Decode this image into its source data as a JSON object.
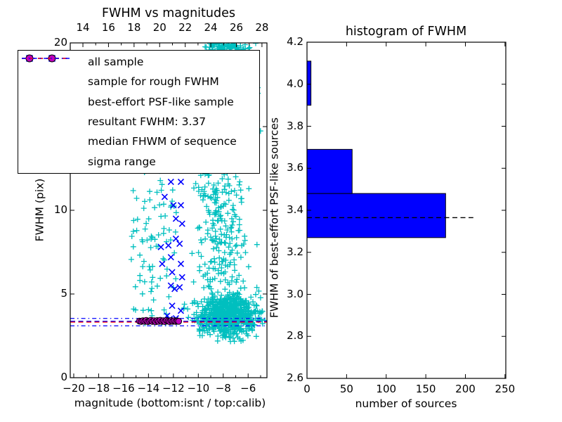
{
  "figure": {
    "background": "#ffffff"
  },
  "chart_data": [
    {
      "id": "fwhm-vs-magnitudes",
      "type": "scatter",
      "title": "FWHM vs magnitudes",
      "xlabel": "magnitude (bottom:isnt / top:calib)",
      "ylabel": "FWHM (pix)",
      "xlim": [
        -20.28,
        -4.49
      ],
      "ylim": [
        0,
        20
      ],
      "top_axis_lim": [
        13.01,
        28.39
      ],
      "xticks": {
        "values": [
          -20,
          -18,
          -16,
          -14,
          -12,
          -10,
          -8,
          -6
        ],
        "labels": [
          "−20",
          "−18",
          "−16",
          "−14",
          "−12",
          "−10",
          "−8",
          "−6"
        ],
        "minor": [
          -19,
          -17,
          -15,
          -13,
          -11,
          -9,
          -7,
          -5
        ]
      },
      "top_ticks": {
        "values": [
          14,
          16,
          18,
          20,
          22,
          24,
          26,
          28
        ],
        "labels": [
          "14",
          "16",
          "18",
          "20",
          "22",
          "24",
          "26",
          "28"
        ],
        "minor": [
          15,
          17,
          19,
          21,
          23,
          25,
          27
        ]
      },
      "yticks": {
        "values": [
          0,
          5,
          10,
          15,
          20
        ],
        "labels": [
          "0",
          "5",
          "10",
          "15",
          "20"
        ]
      },
      "grid": false,
      "series": [
        {
          "name": "all sample",
          "marker": "plus",
          "color": "#00bfbf",
          "generated_clusters": [
            {
              "n": 680,
              "mag": {
                "dist": "normal",
                "mean": -7.6,
                "sd": 1.3,
                "min": -11.2,
                "max": -4.55
              },
              "fwhm": {
                "dist": "normal",
                "mean": 3.8,
                "sd": 0.62,
                "min": 2.75,
                "max": 5.5
              }
            },
            {
              "n": 260,
              "mag": {
                "dist": "normal",
                "mean": -8.2,
                "sd": 1.0,
                "min": -11.6,
                "max": -4.8
              },
              "fwhm": {
                "dist": "uniform",
                "min": 5.3,
                "max": 14
              }
            },
            {
              "n": 215,
              "mag": {
                "dist": "normal",
                "mean": -7.9,
                "sd": 1.15,
                "min": -10.8,
                "max": -4.8
              },
              "fwhm": {
                "dist": "uniform",
                "min": 14,
                "max": 19.95
              }
            },
            {
              "n": 95,
              "mag": {
                "dist": "uniform",
                "min": -15.4,
                "max": -11.7
              },
              "fwhm": {
                "dist": "uniform",
                "min": 3.2,
                "max": 12.5
              }
            },
            {
              "n": 45,
              "mag": {
                "dist": "normal",
                "mean": -7.4,
                "sd": 1.2,
                "min": -10.0,
                "max": -5.0
              },
              "fwhm": {
                "dist": "uniform",
                "min": 2.15,
                "max": 2.85
              }
            },
            {
              "n": 55,
              "mag": {
                "dist": "normal",
                "mean": -7.8,
                "sd": 0.95,
                "min": -10.2,
                "max": -5.2
              },
              "fwhm": {
                "dist": "uniform",
                "min": 19.55,
                "max": 20.0
              }
            }
          ]
        },
        {
          "name": "sample for rough FWHM",
          "marker": "cross",
          "color": "#0000ff",
          "points": [
            [
              -12.2,
              11.7
            ],
            [
              -11.4,
              11.7
            ],
            [
              -12.7,
              10.8
            ],
            [
              -12.0,
              10.3
            ],
            [
              -11.4,
              10.3
            ],
            [
              -11.8,
              9.5
            ],
            [
              -11.3,
              9.2
            ],
            [
              -11.8,
              8.3
            ],
            [
              -11.5,
              8.0
            ],
            [
              -12.4,
              7.9
            ],
            [
              -13.0,
              7.8
            ],
            [
              -12.2,
              7.2
            ],
            [
              -12.9,
              6.8
            ],
            [
              -11.4,
              6.8
            ],
            [
              -12.1,
              6.3
            ],
            [
              -11.3,
              6.0
            ],
            [
              -12.2,
              5.5
            ],
            [
              -11.5,
              5.4
            ],
            [
              -11.9,
              5.3
            ],
            [
              -12.1,
              4.3
            ],
            [
              -11.4,
              4.0
            ],
            [
              -12.5,
              3.7
            ],
            [
              -11.8,
              3.55
            ],
            [
              -12.3,
              3.5
            ]
          ]
        },
        {
          "name": "best-effort PSF-like sample",
          "marker": "circle",
          "color": "#bf00bf",
          "points": [
            [
              -14.72,
              3.38
            ],
            [
              -14.58,
              3.36
            ],
            [
              -14.45,
              3.4
            ],
            [
              -14.3,
              3.37
            ],
            [
              -14.18,
              3.42
            ],
            [
              -14.05,
              3.35
            ],
            [
              -13.92,
              3.39
            ],
            [
              -13.8,
              3.43
            ],
            [
              -13.68,
              3.36
            ],
            [
              -13.55,
              3.4
            ],
            [
              -13.42,
              3.34
            ],
            [
              -13.3,
              3.41
            ],
            [
              -13.18,
              3.37
            ],
            [
              -13.05,
              3.43
            ],
            [
              -12.92,
              3.36
            ],
            [
              -12.8,
              3.4
            ],
            [
              -12.68,
              3.35
            ],
            [
              -12.55,
              3.42
            ],
            [
              -12.42,
              3.38
            ],
            [
              -12.3,
              3.35
            ],
            [
              -12.18,
              3.41
            ],
            [
              -12.05,
              3.37
            ],
            [
              -11.93,
              3.4
            ],
            [
              -11.8,
              3.36
            ],
            [
              -11.68,
              3.39
            ],
            [
              -11.58,
              3.37
            ]
          ]
        }
      ],
      "lines": [
        {
          "name": "resultant FWHM",
          "value": 3.37,
          "color": "#0000ff",
          "style": "dashed"
        },
        {
          "name": "median FHWM of sequence",
          "value": 3.32,
          "color": "#ff0000",
          "style": "dashed"
        },
        {
          "name": "sigma range upper",
          "value": 3.54,
          "color": "#0000ff",
          "style": "dashdot"
        },
        {
          "name": "sigma range lower",
          "value": 3.1,
          "color": "#0000ff",
          "style": "dashdot"
        }
      ],
      "legend": {
        "position": "upper left",
        "items": [
          {
            "marker": "plus",
            "color": "#00bfbf",
            "label": "all sample"
          },
          {
            "marker": "cross",
            "color": "#0000ff",
            "label": "sample for rough FWHM"
          },
          {
            "marker": "circle",
            "color": "#bf00bf",
            "label": "best-effort PSF-like sample"
          },
          {
            "marker": "dashed",
            "color": "#0000ff",
            "label": "resultant FWHM: 3.37"
          },
          {
            "marker": "dashed",
            "color": "#ff0000",
            "label": "median FHWM of sequence"
          },
          {
            "marker": "dashdot",
            "color": "#0000ff",
            "label": "sigma range"
          }
        ]
      }
    },
    {
      "id": "histogram-of-fwhm",
      "type": "bar",
      "orientation": "horizontal",
      "title": "histogram of FWHM",
      "xlabel": "number of sources",
      "ylabel": "FWHM of best-effort PSF-like sources",
      "xlim": [
        0,
        251
      ],
      "ylim": [
        2.6,
        4.2
      ],
      "xticks": {
        "values": [
          0,
          50,
          100,
          150,
          200,
          250
        ],
        "labels": [
          "0",
          "50",
          "100",
          "150",
          "200",
          "250"
        ]
      },
      "yticks": {
        "values": [
          2.6,
          2.8,
          3.0,
          3.2,
          3.4,
          3.6,
          3.8,
          4.0,
          4.2
        ],
        "labels": [
          "2.6",
          "2.8",
          "3.0",
          "3.2",
          "3.4",
          "3.6",
          "3.8",
          "4.0",
          "4.2"
        ]
      },
      "grid": false,
      "bar_color": "#0000ff",
      "bar_edge_color": "#000000",
      "bin_edges": [
        3.27,
        3.48,
        3.69,
        3.9,
        4.11
      ],
      "counts": [
        175,
        57,
        0,
        5
      ],
      "median_line": {
        "value": 3.365,
        "x_extent": [
          0,
          210
        ],
        "color": "#000000",
        "style": "dashed"
      }
    }
  ]
}
